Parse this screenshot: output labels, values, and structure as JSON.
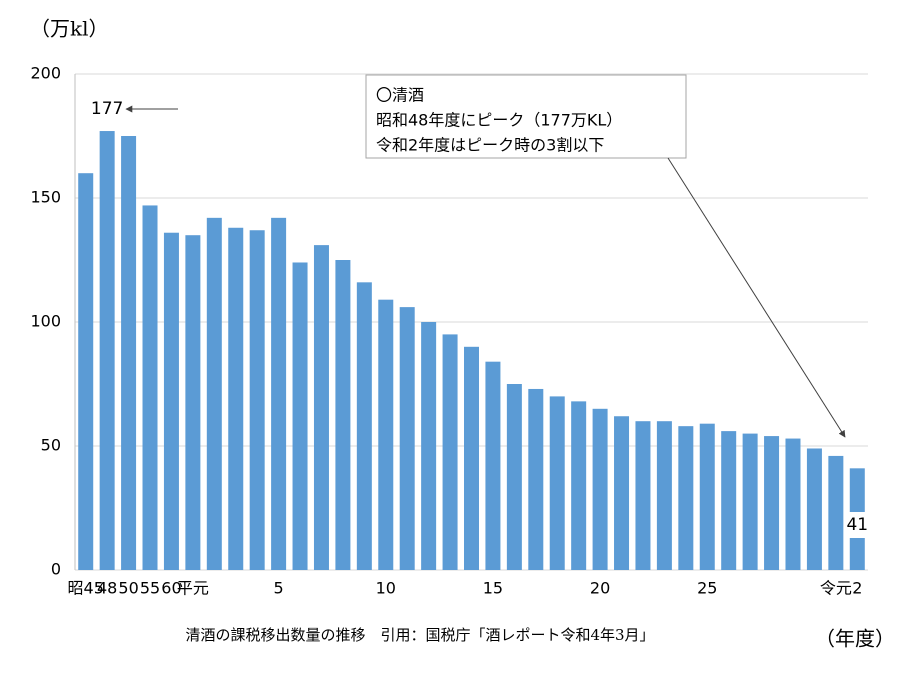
{
  "chart_data": {
    "type": "bar",
    "y_label": "（万kl）",
    "x_label": "（年度）",
    "caption": "清酒の課税移出数量の推移　引用：国税庁「酒レポート令和4年3月」",
    "annotation": [
      "〇清酒",
      "昭和48年度にピーク（177万KL）",
      "令和2年度はピーク時の3割以下"
    ],
    "categories": [
      "昭45",
      "48",
      "50",
      "55",
      "60",
      "平元",
      null,
      null,
      null,
      "5",
      null,
      null,
      null,
      null,
      "10",
      null,
      null,
      null,
      null,
      "15",
      null,
      null,
      null,
      null,
      "20",
      null,
      null,
      null,
      null,
      "25",
      null,
      null,
      null,
      null,
      null,
      "令元",
      "2"
    ],
    "values": [
      160,
      177,
      175,
      147,
      136,
      135,
      142,
      138,
      137,
      142,
      124,
      131,
      125,
      116,
      109,
      106,
      100,
      95,
      90,
      84,
      75,
      73,
      70,
      68,
      65,
      62,
      60,
      60,
      58,
      59,
      56,
      55,
      54,
      53,
      49,
      46,
      41
    ],
    "color": "#5b9bd5",
    "ylim": [
      0,
      200
    ],
    "yticks": [
      0,
      50,
      100,
      150,
      200
    ],
    "grid": true
  }
}
